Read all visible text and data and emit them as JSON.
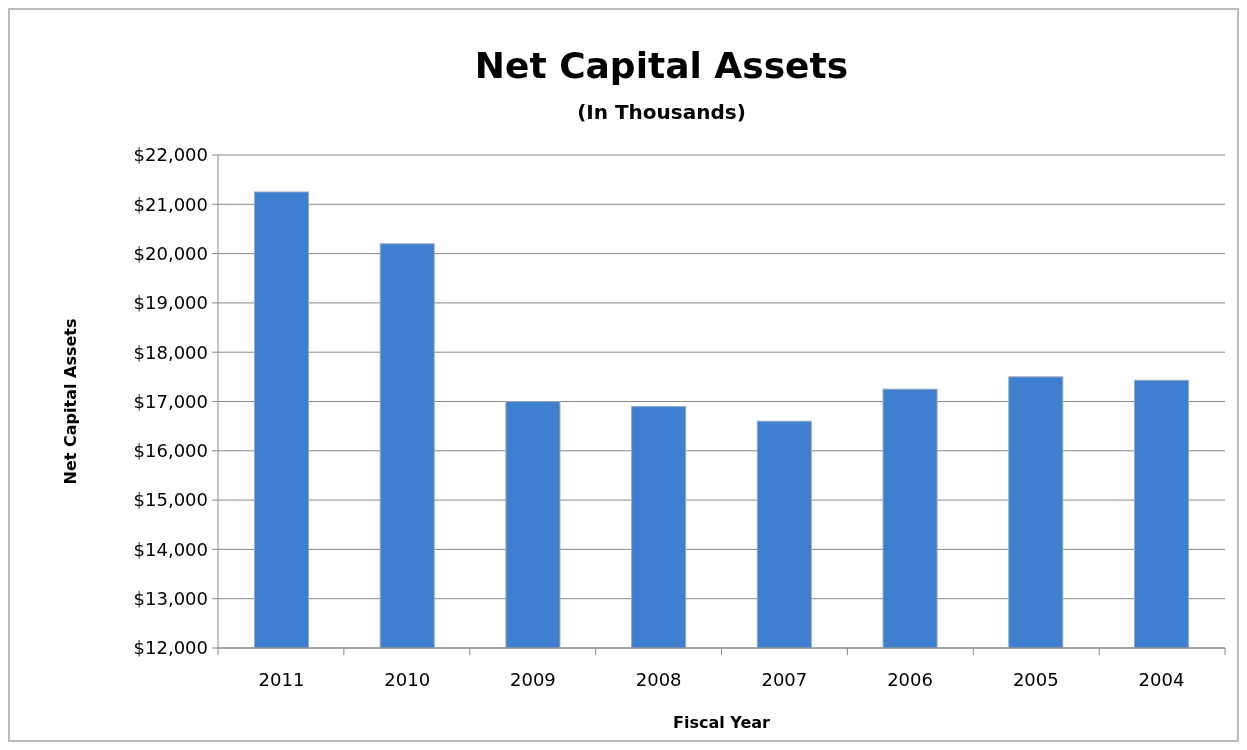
{
  "chart_data": {
    "type": "bar",
    "title": "Net Capital Assets",
    "subtitle": "(In Thousands)",
    "xlabel": "Fiscal Year",
    "ylabel": "Net Capital Assets",
    "categories": [
      "2011",
      "2010",
      "2009",
      "2008",
      "2007",
      "2006",
      "2005",
      "2004"
    ],
    "values": [
      21250,
      20200,
      17000,
      16900,
      16600,
      17250,
      17500,
      17430
    ],
    "color": "#3f7fd0",
    "ylim": [
      12000,
      22000
    ],
    "yticks": [
      {
        "value": 12000,
        "label": "$12,000"
      },
      {
        "value": 13000,
        "label": "$13,000"
      },
      {
        "value": 14000,
        "label": "$14,000"
      },
      {
        "value": 15000,
        "label": "$15,000"
      },
      {
        "value": 16000,
        "label": "$16,000"
      },
      {
        "value": 17000,
        "label": "$17,000"
      },
      {
        "value": 18000,
        "label": "$18,000"
      },
      {
        "value": 19000,
        "label": "$19,000"
      },
      {
        "value": 20000,
        "label": "$20,000"
      },
      {
        "value": 21000,
        "label": "$21,000"
      },
      {
        "value": 22000,
        "label": "$22,000"
      }
    ],
    "grid": "y"
  }
}
